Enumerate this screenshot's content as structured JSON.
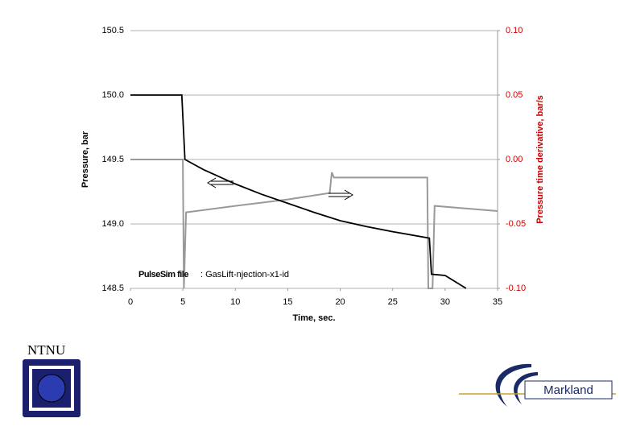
{
  "chart_data": {
    "type": "line",
    "xlabel": "Time, sec.",
    "ylabel": "Pressure, bar",
    "y2label": "Pressure time derivative, bar/s",
    "annotation": {
      "bold": "PulseSim file",
      "text": ": GasLift-njection-x1-id"
    },
    "xlim": [
      0,
      35
    ],
    "xticks": [
      0,
      5,
      10,
      15,
      20,
      25,
      30,
      35
    ],
    "ylim": [
      148.5,
      150.5
    ],
    "yticks": [
      {
        "value": 148.5,
        "label": "148.5"
      },
      {
        "value": 149,
        "label": "149.0"
      },
      {
        "value": 149.5,
        "label": "149.5"
      },
      {
        "value": 150,
        "label": "150.0"
      },
      {
        "value": 150.5,
        "label": "150.5"
      }
    ],
    "y2lim": [
      -0.1,
      0.1
    ],
    "y2ticks": [
      {
        "value": -0.1,
        "label": "-0.10"
      },
      -0.05,
      {
        "value": 0,
        "label": "0.00"
      },
      0.05,
      {
        "value": 0.1,
        "label": "0.10"
      }
    ],
    "grid": true,
    "series": [
      {
        "color": "#000000",
        "x": [
          0,
          4.9,
          5.2,
          7,
          10,
          12.5,
          15,
          17.5,
          20,
          22.5,
          25,
          28.5,
          28.7,
          30,
          32
        ],
        "values": [
          150,
          150,
          149.5,
          149.42,
          149.31,
          149.23,
          149.16,
          149.09,
          149.025,
          148.98,
          148.94,
          148.89,
          148.61,
          148.6,
          148.5
        ]
      },
      {
        "color": "#999999",
        "axis": "y2",
        "x": [
          0,
          5,
          5.1,
          5.3,
          10,
          15,
          19,
          19.2,
          19.4,
          28.3,
          28.4,
          28.8,
          29,
          35
        ],
        "values": [
          0,
          0,
          -0.1,
          -0.041,
          -0.036,
          -0.031,
          -0.026,
          -0.01,
          -0.014,
          -0.014,
          -0.1,
          -0.1,
          -0.036,
          -0.04
        ]
      }
    ]
  },
  "logos": {
    "left": "NTNU",
    "right": "Markland"
  }
}
